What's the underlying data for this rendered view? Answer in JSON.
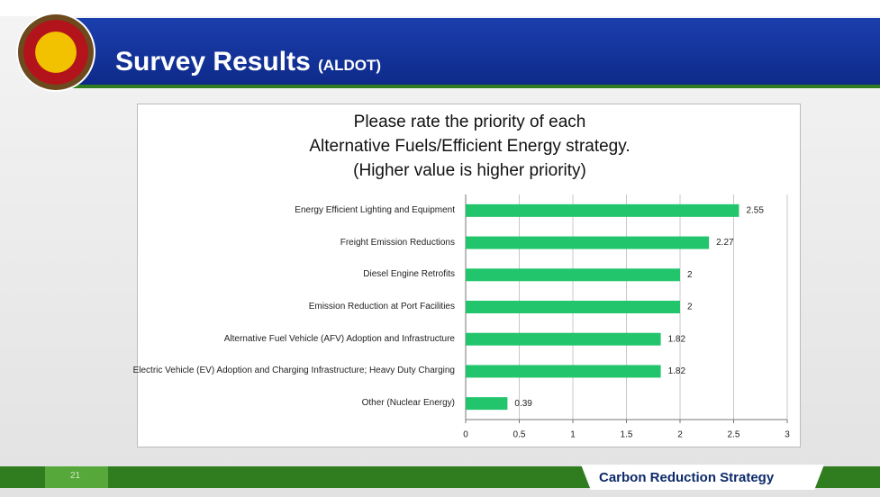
{
  "slide": {
    "title": "Survey Results",
    "subtitle": "(ALDOT)",
    "page_number": "21",
    "footer": "Carbon Reduction Strategy"
  },
  "chart_data": {
    "type": "bar",
    "orientation": "horizontal",
    "title": "Please rate the priority of each\nAlternative Fuels/Efficient Energy strategy.\n(Higher value is higher priority)",
    "categories": [
      "Energy Efficient Lighting and Equipment",
      "Freight Emission Reductions",
      "Diesel Engine Retrofits",
      "Emission Reduction at Port Facilities",
      "Alternative Fuel Vehicle (AFV) Adoption and Infrastructure",
      "Electric Vehicle (EV) Adoption and Charging Infrastructure; Heavy Duty Charging",
      "Other (Nuclear Energy)"
    ],
    "values": [
      2.55,
      2.27,
      2,
      2,
      1.82,
      1.82,
      0.39
    ],
    "color": "#22c56c",
    "xlim": [
      0,
      3
    ],
    "xticks": [
      0,
      0.5,
      1,
      1.5,
      2,
      2.5,
      3
    ],
    "grid": true
  }
}
